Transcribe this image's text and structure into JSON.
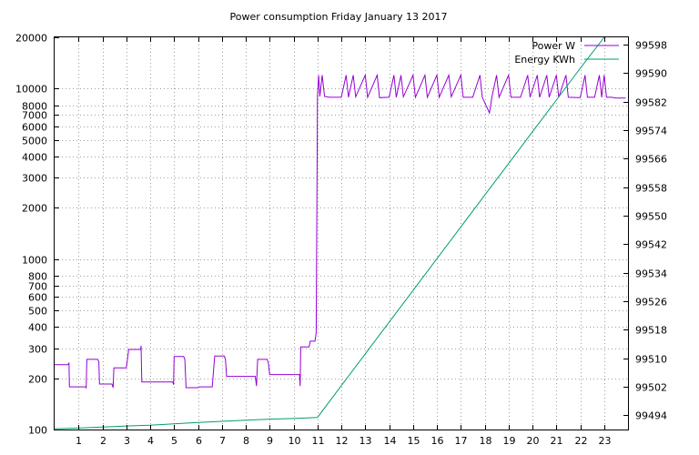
{
  "chart_data": {
    "type": "line",
    "title": "Power consumption Friday January 13 2017",
    "xlabel": "",
    "ylabel": "",
    "y2label": "",
    "grid": true,
    "legend_position": "top-right",
    "x_range": [
      0,
      24
    ],
    "y_range": [
      100,
      20000
    ],
    "y_scale": "log",
    "y2_range": [
      99490,
      99600
    ],
    "x_ticks": [
      1,
      2,
      3,
      4,
      5,
      6,
      7,
      8,
      9,
      10,
      11,
      12,
      13,
      14,
      15,
      16,
      17,
      18,
      19,
      20,
      21,
      22,
      23
    ],
    "y_ticks": [
      {
        "value": 100,
        "label": "100"
      },
      {
        "value": 200,
        "label": "200"
      },
      {
        "value": 300,
        "label": "300"
      },
      {
        "value": 400,
        "label": "400"
      },
      {
        "value": 500,
        "label": "500"
      },
      {
        "value": 600,
        "label": "600"
      },
      {
        "value": 700,
        "label": "700"
      },
      {
        "value": 800,
        "label": "800"
      },
      {
        "value": 1000,
        "label": "1000"
      },
      {
        "value": 2000,
        "label": "2000"
      },
      {
        "value": 3000,
        "label": "3000"
      },
      {
        "value": 4000,
        "label": "4000"
      },
      {
        "value": 5000,
        "label": "5000"
      },
      {
        "value": 6000,
        "label": "6000"
      },
      {
        "value": 7000,
        "label": "7000"
      },
      {
        "value": 8000,
        "label": "8000"
      },
      {
        "value": 10000,
        "label": "10000"
      },
      {
        "value": 20000,
        "label": "20000"
      }
    ],
    "y2_ticks": [
      99494,
      99502,
      99510,
      99518,
      99526,
      99534,
      99542,
      99550,
      99558,
      99566,
      99574,
      99582,
      99590,
      99598
    ],
    "series": [
      {
        "name": "Power W",
        "axis": "y",
        "color": "#9400d3",
        "points": [
          [
            0.0,
            240
          ],
          [
            0.55,
            240
          ],
          [
            0.6,
            245
          ],
          [
            0.62,
            178
          ],
          [
            1.3,
            178
          ],
          [
            1.32,
            176
          ],
          [
            1.35,
            258
          ],
          [
            1.8,
            258
          ],
          [
            1.85,
            250
          ],
          [
            1.88,
            185
          ],
          [
            2.4,
            185
          ],
          [
            2.45,
            176
          ],
          [
            2.48,
            230
          ],
          [
            3.0,
            230
          ],
          [
            3.05,
            260
          ],
          [
            3.1,
            295
          ],
          [
            3.6,
            295
          ],
          [
            3.62,
            310
          ],
          [
            3.65,
            190
          ],
          [
            4.95,
            190
          ],
          [
            4.98,
            183
          ],
          [
            5.0,
            268
          ],
          [
            5.4,
            268
          ],
          [
            5.45,
            258
          ],
          [
            5.5,
            176
          ],
          [
            6.0,
            176
          ],
          [
            6.05,
            178
          ],
          [
            6.6,
            178
          ],
          [
            6.7,
            270
          ],
          [
            7.1,
            270
          ],
          [
            7.15,
            258
          ],
          [
            7.2,
            205
          ],
          [
            8.4,
            205
          ],
          [
            8.45,
            180
          ],
          [
            8.5,
            258
          ],
          [
            8.9,
            258
          ],
          [
            8.95,
            245
          ],
          [
            9.0,
            210
          ],
          [
            10.25,
            210
          ],
          [
            10.28,
            180
          ],
          [
            10.3,
            305
          ],
          [
            10.65,
            305
          ],
          [
            10.7,
            330
          ],
          [
            10.9,
            330
          ],
          [
            10.95,
            370
          ],
          [
            11.0,
            9000
          ],
          [
            11.05,
            12000
          ],
          [
            11.1,
            9000
          ],
          [
            11.2,
            12000
          ],
          [
            11.3,
            9000
          ],
          [
            11.5,
            8900
          ],
          [
            12.0,
            8900
          ],
          [
            12.2,
            12000
          ],
          [
            12.3,
            8900
          ],
          [
            12.5,
            12000
          ],
          [
            12.6,
            8950
          ],
          [
            13.0,
            12000
          ],
          [
            13.1,
            8900
          ],
          [
            13.5,
            12000
          ],
          [
            13.6,
            8850
          ],
          [
            14.0,
            8900
          ],
          [
            14.2,
            12000
          ],
          [
            14.3,
            8900
          ],
          [
            14.5,
            12000
          ],
          [
            14.6,
            8950
          ],
          [
            15.0,
            12000
          ],
          [
            15.1,
            8900
          ],
          [
            15.5,
            12000
          ],
          [
            15.6,
            8900
          ],
          [
            16.0,
            12000
          ],
          [
            16.1,
            8900
          ],
          [
            16.5,
            12000
          ],
          [
            16.6,
            8950
          ],
          [
            17.0,
            12000
          ],
          [
            17.1,
            8900
          ],
          [
            17.5,
            8900
          ],
          [
            17.8,
            12000
          ],
          [
            17.9,
            8900
          ],
          [
            18.2,
            7200
          ],
          [
            18.3,
            8900
          ],
          [
            18.5,
            12000
          ],
          [
            18.6,
            8900
          ],
          [
            19.0,
            12000
          ],
          [
            19.1,
            8900
          ],
          [
            19.5,
            8900
          ],
          [
            19.8,
            12000
          ],
          [
            19.9,
            8900
          ],
          [
            20.2,
            12000
          ],
          [
            20.3,
            8900
          ],
          [
            20.6,
            12000
          ],
          [
            20.7,
            8900
          ],
          [
            21.0,
            12000
          ],
          [
            21.1,
            8900
          ],
          [
            21.4,
            12000
          ],
          [
            21.5,
            8900
          ],
          [
            22.0,
            8850
          ],
          [
            22.2,
            12000
          ],
          [
            22.3,
            8900
          ],
          [
            22.6,
            8900
          ],
          [
            22.8,
            12000
          ],
          [
            22.9,
            8900
          ],
          [
            23.0,
            12000
          ],
          [
            23.1,
            8900
          ],
          [
            23.3,
            8900
          ],
          [
            23.5,
            8800
          ],
          [
            23.9,
            8800
          ]
        ]
      },
      {
        "name": "Energy KWh",
        "axis": "y2",
        "color": "#009e73",
        "points": [
          [
            0.0,
            99490.2
          ],
          [
            1.0,
            99490.4
          ],
          [
            2.0,
            99490.7
          ],
          [
            3.0,
            99491.0
          ],
          [
            4.0,
            99491.2
          ],
          [
            5.0,
            99491.6
          ],
          [
            6.0,
            99492.0
          ],
          [
            7.0,
            99492.3
          ],
          [
            8.0,
            99492.6
          ],
          [
            9.0,
            99492.9
          ],
          [
            10.0,
            99493.1
          ],
          [
            11.0,
            99493.4
          ],
          [
            12.0,
            99502.3
          ],
          [
            13.0,
            99511.2
          ],
          [
            14.0,
            99520.1
          ],
          [
            15.0,
            99529.0
          ],
          [
            16.0,
            99537.9
          ],
          [
            17.0,
            99546.8
          ],
          [
            18.0,
            99555.7
          ],
          [
            19.0,
            99564.6
          ],
          [
            20.0,
            99573.5
          ],
          [
            21.0,
            99582.4
          ],
          [
            22.0,
            99591.3
          ],
          [
            23.0,
            99600.2
          ]
        ]
      }
    ]
  }
}
